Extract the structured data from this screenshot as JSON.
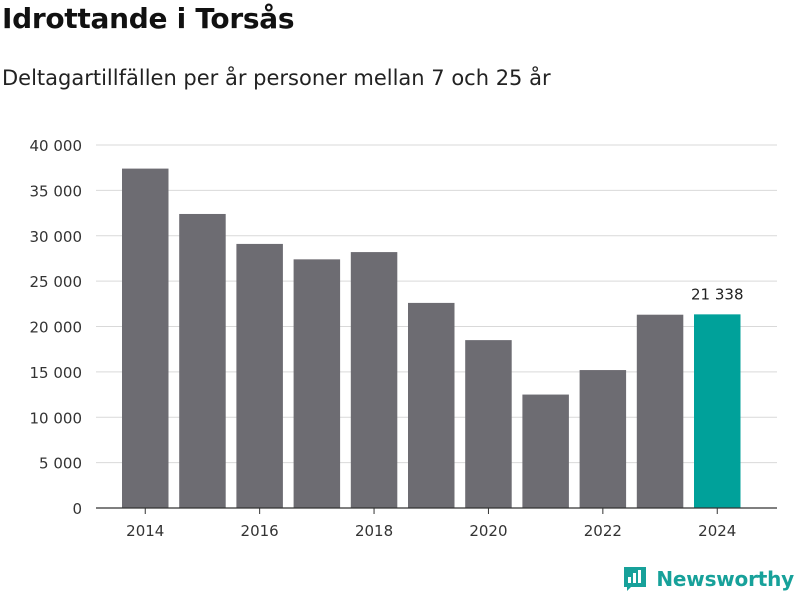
{
  "header": {
    "title": "Idrottande i Torsås",
    "subtitle": "Deltagartillfällen per år personer mellan 7 och 25 år"
  },
  "brand": {
    "name": "Newsworthy"
  },
  "colors": {
    "bar": "#6d6c72",
    "highlight": "#00a19a",
    "grid": "#d9d9d9",
    "axis": "#333333"
  },
  "chart_data": {
    "type": "bar",
    "categories": [
      "2014",
      "2015",
      "2016",
      "2017",
      "2018",
      "2019",
      "2020",
      "2021",
      "2022",
      "2023",
      "2024"
    ],
    "values": [
      37400,
      32400,
      29100,
      27400,
      28200,
      22600,
      18500,
      12500,
      15200,
      21300,
      21338
    ],
    "highlight_index": 10,
    "data_labels": [
      {
        "index": 10,
        "text": "21 338"
      }
    ],
    "x_tick_labels": [
      "2014",
      "2016",
      "2018",
      "2020",
      "2022",
      "2024"
    ],
    "y_ticks": [
      0,
      5000,
      10000,
      15000,
      20000,
      25000,
      30000,
      35000,
      40000
    ],
    "y_tick_labels": [
      "0",
      "5 000",
      "10 000",
      "15 000",
      "20 000",
      "25 000",
      "30 000",
      "35 000",
      "40 000"
    ],
    "ylim": [
      0,
      40000
    ],
    "grid": true,
    "title": "Idrottande i Torsås",
    "xlabel": "",
    "ylabel": ""
  }
}
